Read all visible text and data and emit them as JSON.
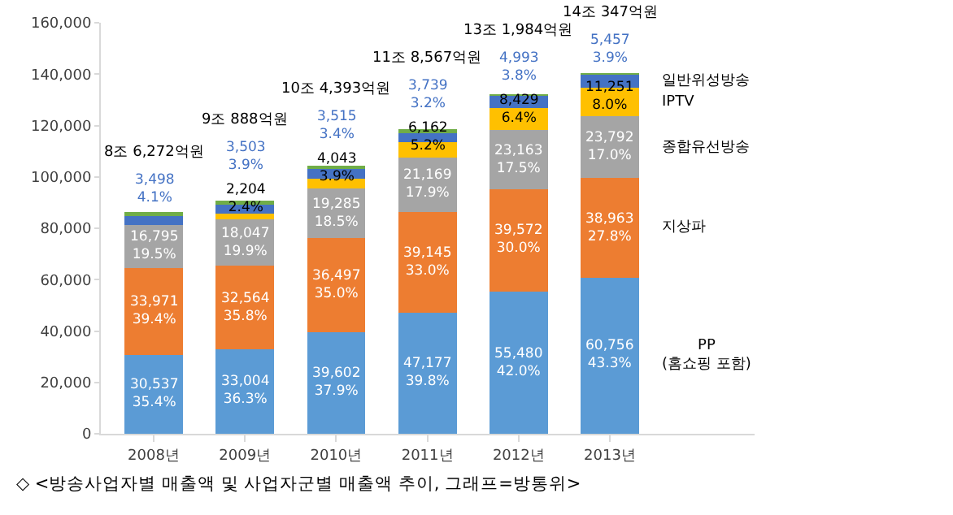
{
  "chart_data": {
    "type": "bar",
    "stacked": true,
    "categories": [
      "2008년",
      "2009년",
      "2010년",
      "2011년",
      "2012년",
      "2013년"
    ],
    "series": [
      {
        "name": "PP\n(홈쇼핑 포함)",
        "color": "#5b9bd5",
        "values": [
          30537,
          33004,
          39602,
          47177,
          55480,
          60756
        ],
        "value_labels": [
          "30,537\n35.4%",
          "33,004\n36.3%",
          "39,602\n37.9%",
          "47,177\n39.8%",
          "55,480\n42.0%",
          "60,756\n43.3%"
        ]
      },
      {
        "name": "지상파",
        "color": "#ed7d31",
        "values": [
          33971,
          32564,
          36497,
          39145,
          39572,
          38963
        ],
        "value_labels": [
          "33,971\n39.4%",
          "32,564\n35.8%",
          "36,497\n35.0%",
          "39,145\n33.0%",
          "39,572\n30.0%",
          "38,963\n27.8%"
        ]
      },
      {
        "name": "종합유선방송",
        "color": "#a5a5a5",
        "values": [
          16795,
          18047,
          19285,
          21169,
          23163,
          23792
        ],
        "value_labels": [
          "16,795\n19.5%",
          "18,047\n19.9%",
          "19,285\n18.5%",
          "21,169\n17.9%",
          "23,163\n17.5%",
          "23,792\n17.0%"
        ]
      },
      {
        "name": "IPTV",
        "color": "#ffc000",
        "values": [
          null,
          2204,
          4043,
          6162,
          8429,
          11251
        ],
        "value_labels": [
          null,
          "2,204\n2.4%",
          "4,043\n3.9%",
          "6,162\n5.2%",
          "8,429\n6.4%",
          "11,251\n8.0%"
        ]
      },
      {
        "name": "일반위성방송",
        "color": "#4472c4",
        "values": [
          3498,
          3503,
          3515,
          3739,
          4993,
          5457
        ],
        "value_labels": [
          "3,498\n4.1%",
          "3,503\n3.9%",
          "3,515\n3.4%",
          "3,739\n3.2%",
          "4,993\n3.8%",
          "5,457\n3.9%"
        ]
      },
      {
        "color": "#70ad47",
        "values": [
          1471,
          1566,
          1451,
          1175,
          347,
          128
        ]
      }
    ],
    "ylim": [
      0,
      160000
    ],
    "yticks": [
      0,
      {
        "value": 20000,
        "label": "20,000"
      },
      {
        "value": 40000,
        "label": "40,000"
      },
      {
        "value": 60000,
        "label": "60,000"
      },
      {
        "value": 80000,
        "label": "80,000"
      },
      {
        "value": 100000,
        "label": "100,000"
      },
      {
        "value": 120000,
        "label": "120,000"
      },
      {
        "value": 140000,
        "label": "140,000"
      },
      {
        "value": 160000,
        "label": "160,000"
      }
    ],
    "grid": false,
    "legend": false,
    "annotations": [
      "8조 6,272억원",
      "9조 888억원",
      "10조 4,393억원",
      "11조 8,567억원",
      "13조 1,984억원",
      "14조 347억원",
      "◇ <방송사업자별 매출액 및 사업자군별 매출액 추이, 그래프=방통위>"
    ]
  }
}
